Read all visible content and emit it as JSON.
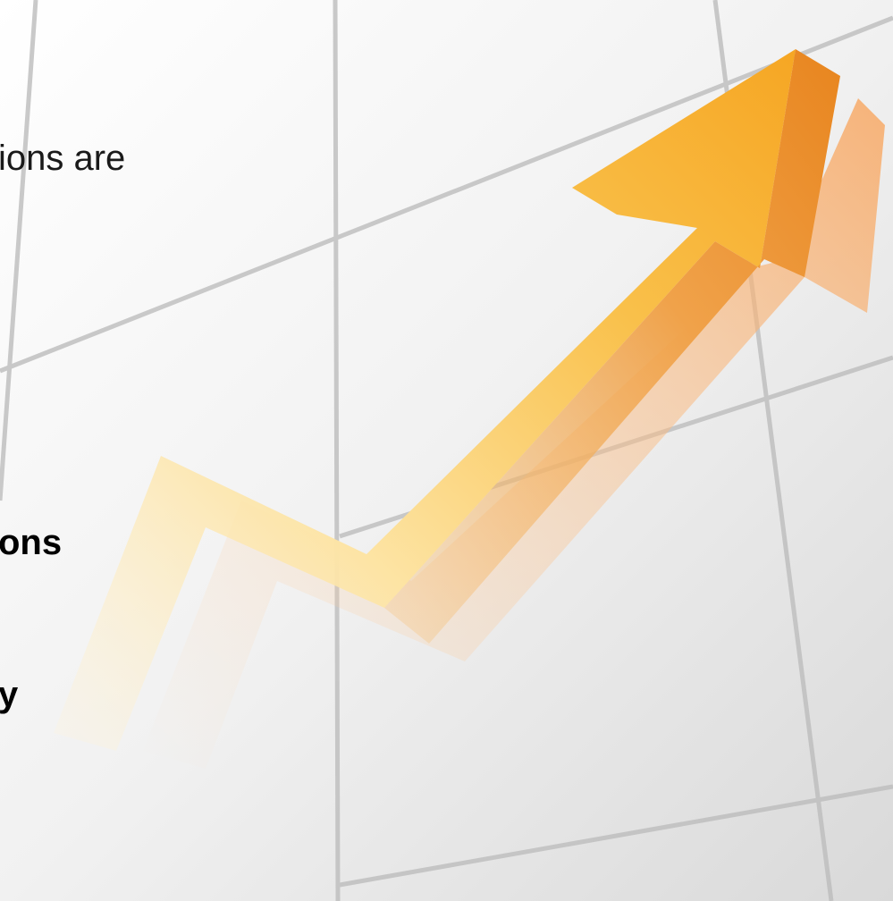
{
  "lines": [
    "ions are",
    "ons",
    "y"
  ]
}
